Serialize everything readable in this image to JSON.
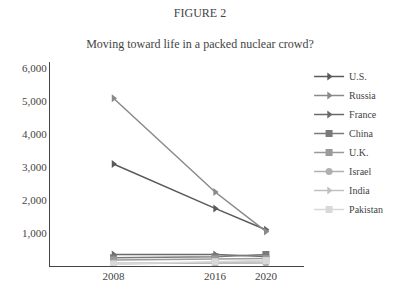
{
  "chart_data": {
    "type": "line",
    "title": "FIGURE 2",
    "subtitle": "Moving toward life in a packed nuclear crowd?",
    "x": [
      2008,
      2016,
      2020
    ],
    "series": [
      {
        "name": "U.S.",
        "values": [
          3100,
          1750,
          1100
        ],
        "color": "#5a5a5a",
        "marker": "triangle-right"
      },
      {
        "name": "Russia",
        "values": [
          5100,
          2250,
          1050
        ],
        "color": "#8a8a8a",
        "marker": "triangle-right"
      },
      {
        "name": "France",
        "values": [
          350,
          350,
          290
        ],
        "color": "#6a6a6a",
        "marker": "triangle-right"
      },
      {
        "name": "China",
        "values": [
          250,
          280,
          350
        ],
        "color": "#7a7a7a",
        "marker": "square"
      },
      {
        "name": "U.K.",
        "values": [
          185,
          215,
          225
        ],
        "color": "#9a9a9a",
        "marker": "square"
      },
      {
        "name": "Israel",
        "values": [
          80,
          80,
          90
        ],
        "color": "#b0b0b0",
        "marker": "circle"
      },
      {
        "name": "India",
        "values": [
          60,
          110,
          160
        ],
        "color": "#c0c0c0",
        "marker": "triangle-right"
      },
      {
        "name": "Pakistan",
        "values": [
          60,
          130,
          165
        ],
        "color": "#d8d8d8",
        "marker": "square"
      }
    ],
    "xlim": [
      2003,
      2023
    ],
    "xticks": [
      2008,
      2016,
      2020
    ],
    "ylim": [
      0,
      6200
    ],
    "yticks": [
      {
        "value": 1000,
        "label": "1,000"
      },
      {
        "value": 2000,
        "label": "2,000"
      },
      {
        "value": 3000,
        "label": "3,000"
      },
      {
        "value": 4000,
        "label": "4,000"
      },
      {
        "value": 5000,
        "label": "5,000"
      },
      {
        "value": 6000,
        "label": "6,000"
      }
    ],
    "grid": false,
    "legend": "upper right"
  }
}
